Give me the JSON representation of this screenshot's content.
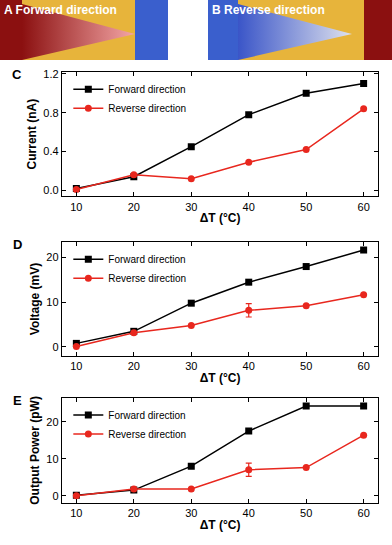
{
  "diagrams": [
    {
      "panel": "A",
      "label": "Forward direction"
    },
    {
      "panel": "B",
      "label": "Reverse direction"
    }
  ],
  "chart_data": [
    {
      "type": "line",
      "annotations": [
        {
          "text": "C"
        }
      ],
      "x_label": "ΔT (°C)",
      "y_label": "Current (nA)",
      "x": [
        10,
        20,
        30,
        40,
        50,
        60
      ],
      "series": [
        {
          "name": "Forward direction",
          "color": "#000000",
          "marker": "square",
          "values": [
            0.02,
            0.14,
            0.45,
            0.78,
            1.0,
            1.1
          ]
        },
        {
          "name": "Reverse direction",
          "color": "#e8271e",
          "marker": "circle",
          "values": [
            0.01,
            0.16,
            0.12,
            0.29,
            0.42,
            0.84
          ]
        }
      ],
      "xlim": [
        7.5,
        62.5
      ],
      "xticks": [
        10,
        20,
        30,
        40,
        50,
        60
      ],
      "ylim": [
        -0.06,
        1.22
      ],
      "yticks": [
        {
          "value": 0,
          "label": "0.0"
        },
        {
          "value": 0.4,
          "label": "0.4"
        },
        {
          "value": 0.8,
          "label": "0.8"
        },
        {
          "value": 1.2,
          "label": "1.2"
        }
      ],
      "grid": false,
      "legend": "top left"
    },
    {
      "type": "line",
      "annotations": [
        {
          "text": "D"
        }
      ],
      "x_label": "ΔT (°C)",
      "y_label": "Voltage (mV)",
      "x": [
        10,
        20,
        30,
        40,
        50,
        60
      ],
      "series": [
        {
          "name": "Forward direction",
          "color": "#000000",
          "marker": "square",
          "values": [
            0.8,
            3.5,
            9.8,
            14.5,
            18.0,
            21.7
          ]
        },
        {
          "name": "Reverse direction",
          "color": "#e8271e",
          "marker": "circle",
          "values": [
            0.1,
            3.2,
            4.8,
            8.2,
            9.2,
            11.7
          ],
          "errors": [
            0,
            0,
            0,
            1.5,
            0,
            0
          ]
        }
      ],
      "xlim": [
        7.5,
        62.5
      ],
      "xticks": [
        10,
        20,
        30,
        40,
        50,
        60
      ],
      "ylim": [
        -2,
        23.5
      ],
      "yticks": [
        0,
        10,
        20
      ],
      "grid": false,
      "legend": "top left"
    },
    {
      "type": "line",
      "annotations": [
        {
          "text": "E"
        }
      ],
      "x_label": "ΔT (°C)",
      "y_label": "Output Power (pW)",
      "x": [
        10,
        20,
        30,
        40,
        50,
        60
      ],
      "series": [
        {
          "name": "Forward direction",
          "color": "#000000",
          "marker": "square",
          "values": [
            0.1,
            1.5,
            8.0,
            17.5,
            24.3,
            24.3
          ]
        },
        {
          "name": "Reverse direction",
          "color": "#e8271e",
          "marker": "circle",
          "values": [
            0.0,
            1.8,
            1.8,
            7.0,
            7.6,
            16.4
          ],
          "errors": [
            0,
            0,
            0,
            1.8,
            0,
            0
          ]
        }
      ],
      "xlim": [
        7.5,
        62.5
      ],
      "xticks": [
        10,
        20,
        30,
        40,
        50,
        60
      ],
      "ylim": [
        -2,
        26.5
      ],
      "yticks": [
        0,
        10,
        20
      ],
      "grid": false,
      "legend": "top left"
    }
  ]
}
